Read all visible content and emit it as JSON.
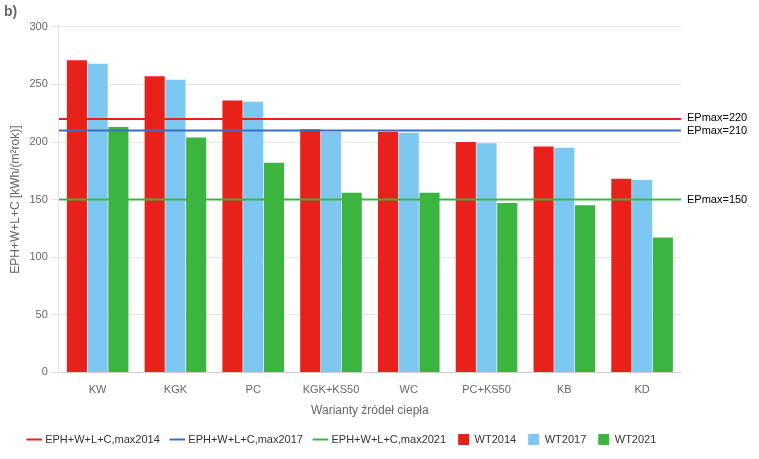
{
  "chart_data": {
    "type": "bar",
    "title": "b)",
    "xlabel": "Warianty źródeł ciepła",
    "ylabel": "EPH+W+L+C [kWh/(m²rok)]",
    "categories": [
      "KW",
      "KGK",
      "PC",
      "KGK+KS50",
      "WC",
      "PC+KS50",
      "KB",
      "KD"
    ],
    "series": [
      {
        "name": "WT2014",
        "color": "#E8221A",
        "values": [
          271,
          257,
          236,
          211,
          209,
          200,
          196,
          168
        ]
      },
      {
        "name": "WT2017",
        "color": "#7DC8F0",
        "values": [
          268,
          254,
          235,
          209,
          208,
          199,
          195,
          167
        ]
      },
      {
        "name": "WT2021",
        "color": "#3CB540",
        "values": [
          213,
          204,
          182,
          156,
          156,
          147,
          145,
          117
        ]
      }
    ],
    "reference_lines": [
      {
        "name": "EPH+W+L+C,max2014",
        "color": "#E8221A",
        "value": 220,
        "label": "EPmax=220"
      },
      {
        "name": "EPH+W+L+C,max2017",
        "color": "#3C6EBF",
        "value": 210,
        "label": "EPmax=210"
      },
      {
        "name": "EPH+W+L+C,max2021",
        "color": "#3CB540",
        "value": 150,
        "label": "EPmax=150"
      }
    ],
    "ylim": [
      0,
      300
    ],
    "yticks": [
      0,
      50,
      100,
      150,
      200,
      250,
      300
    ],
    "grid": true,
    "legend": "bottom"
  }
}
